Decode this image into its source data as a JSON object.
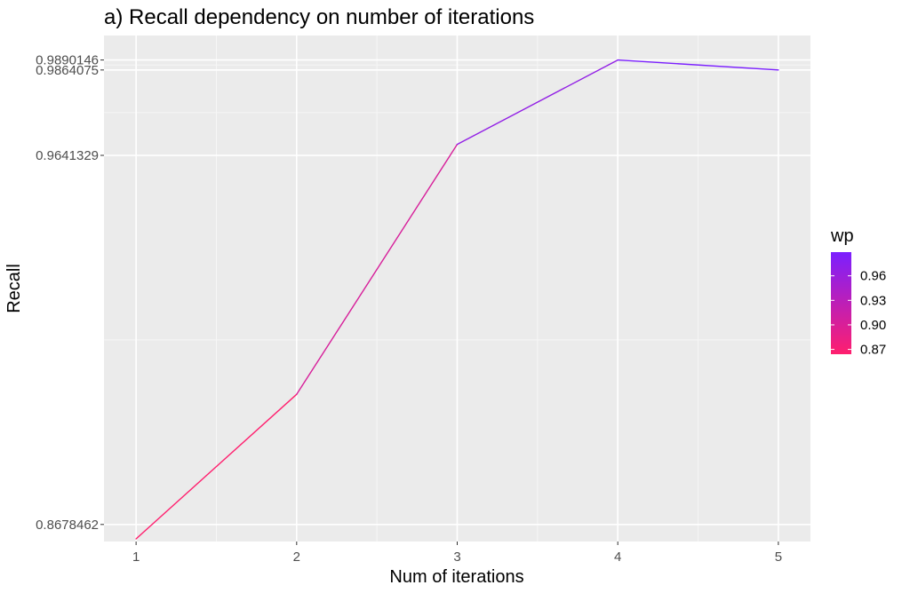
{
  "chart_data": {
    "type": "line",
    "title": "a) Recall dependency on number of iterations",
    "xlabel": "Num of iterations",
    "ylabel": "Recall",
    "x": [
      1,
      2,
      3,
      4,
      5
    ],
    "x_ticks": [
      "1",
      "2",
      "3",
      "4",
      "5"
    ],
    "xlim": [
      0.8,
      5.2
    ],
    "ylim": [
      0.8634,
      0.9954
    ],
    "y_ticks": [
      {
        "value": 0.8678462,
        "label": "0.8678462"
      },
      {
        "value": 0.9641329,
        "label": "0.9641329"
      },
      {
        "value": 0.9864075,
        "label": "0.9864075"
      },
      {
        "value": 0.9890146,
        "label": "0.9890146"
      }
    ],
    "series": [
      {
        "values": [
          0.8641,
          0.9018,
          0.967,
          0.9890146,
          0.9864075
        ],
        "wp": [
          0.8641,
          0.9018,
          0.967,
          0.9890146,
          0.9864075
        ]
      }
    ],
    "grid": true,
    "legend": {
      "title": "wp",
      "position": "right",
      "type": "colorbar",
      "range": [
        0.8641,
        0.989
      ],
      "ticks": [
        {
          "value": 0.87,
          "label": "0.87"
        },
        {
          "value": 0.9,
          "label": "0.90"
        },
        {
          "value": 0.93,
          "label": "0.93"
        },
        {
          "value": 0.96,
          "label": "0.96"
        }
      ],
      "color_low": "#FF1F6E",
      "color_high": "#7B1FFF"
    },
    "colors": {
      "panel_background": "#EBEBEB",
      "grid_major": "#FFFFFF",
      "text": "#4D4D4D",
      "title": "#000000"
    }
  }
}
